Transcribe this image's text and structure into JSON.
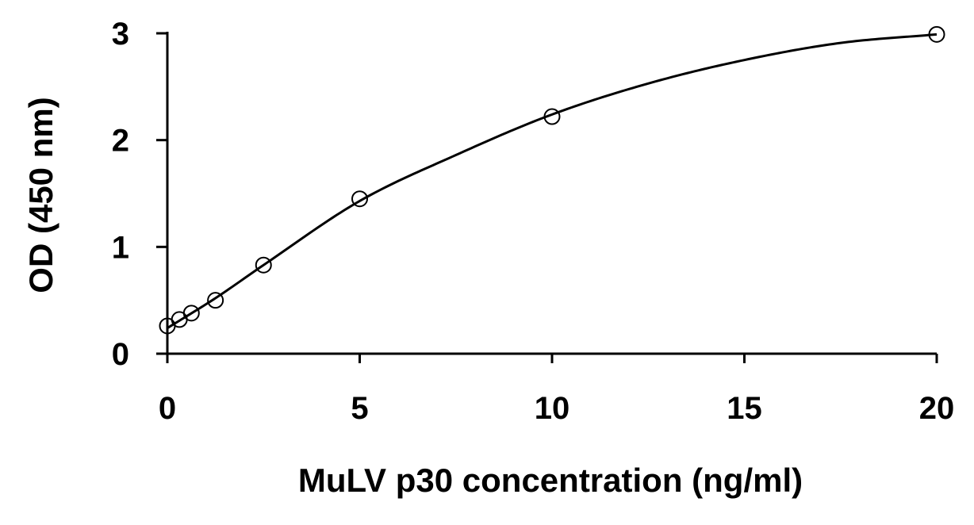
{
  "chart_data": {
    "type": "scatter",
    "title": "",
    "xlabel": "MuLV p30 concentration (ng/ml)",
    "ylabel": "OD (450 nm)",
    "xlim": [
      0,
      20
    ],
    "ylim": [
      0,
      3
    ],
    "x_ticks": [
      0,
      5,
      10,
      15,
      20
    ],
    "y_ticks": [
      0,
      1,
      2,
      3
    ],
    "x_tick_labels": [
      "0",
      "5",
      "10",
      "15",
      "20"
    ],
    "y_tick_labels": [
      "0",
      "1",
      "2",
      "3"
    ],
    "grid": false,
    "legend": "none",
    "series": [
      {
        "marker": "open-circle",
        "x": [
          0,
          0.313,
          0.625,
          1.25,
          2.5,
          5,
          10,
          20
        ],
        "y": [
          0.26,
          0.32,
          0.38,
          0.5,
          0.83,
          1.45,
          2.22,
          2.99
        ]
      }
    ],
    "fit_curve": {
      "kind": "smooth-fit",
      "x": [
        0,
        1.25,
        2.5,
        5,
        7.5,
        10,
        12.5,
        15,
        17.5,
        20
      ],
      "y": [
        0.24,
        0.52,
        0.83,
        1.43,
        1.86,
        2.24,
        2.53,
        2.75,
        2.91,
        2.99
      ]
    },
    "colors": {
      "axis": "#000000",
      "marker_stroke": "#000000",
      "marker_fill": "#ffffff",
      "curve": "#000000"
    }
  }
}
